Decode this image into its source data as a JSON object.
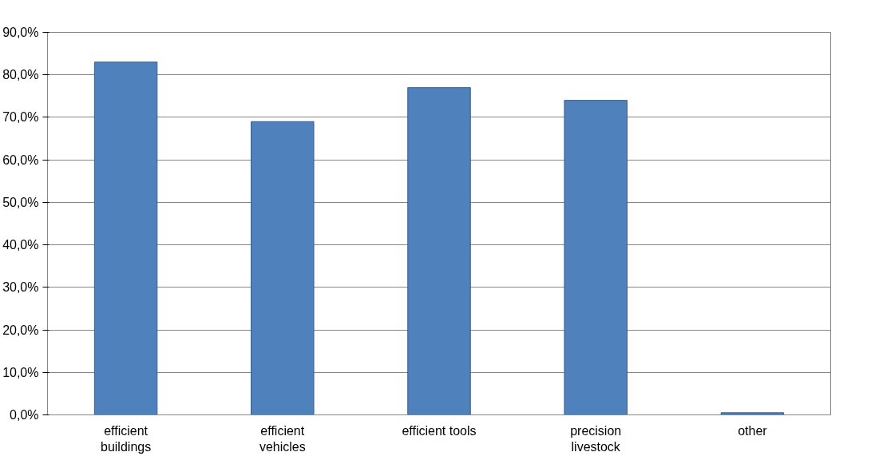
{
  "chart_data": {
    "type": "bar",
    "categories": [
      "efficient\nbuildings",
      "efficient\nvehicles",
      "efficient tools",
      "precision\nlivestock",
      "other"
    ],
    "values": [
      83,
      69,
      77,
      74,
      0.5
    ],
    "color": "#4f81bd",
    "ylim": [
      0,
      90
    ],
    "yticks": [
      {
        "value": 0,
        "label": "0,0%"
      },
      {
        "value": 10,
        "label": "10,0%"
      },
      {
        "value": 20,
        "label": "20,0%"
      },
      {
        "value": 30,
        "label": "30,0%"
      },
      {
        "value": 40,
        "label": "40,0%"
      },
      {
        "value": 50,
        "label": "50,0%"
      },
      {
        "value": 60,
        "label": "60,0%"
      },
      {
        "value": 70,
        "label": "70,0%"
      },
      {
        "value": 80,
        "label": "80,0%"
      },
      {
        "value": 90,
        "label": "90,0%"
      }
    ],
    "grid": "y"
  }
}
